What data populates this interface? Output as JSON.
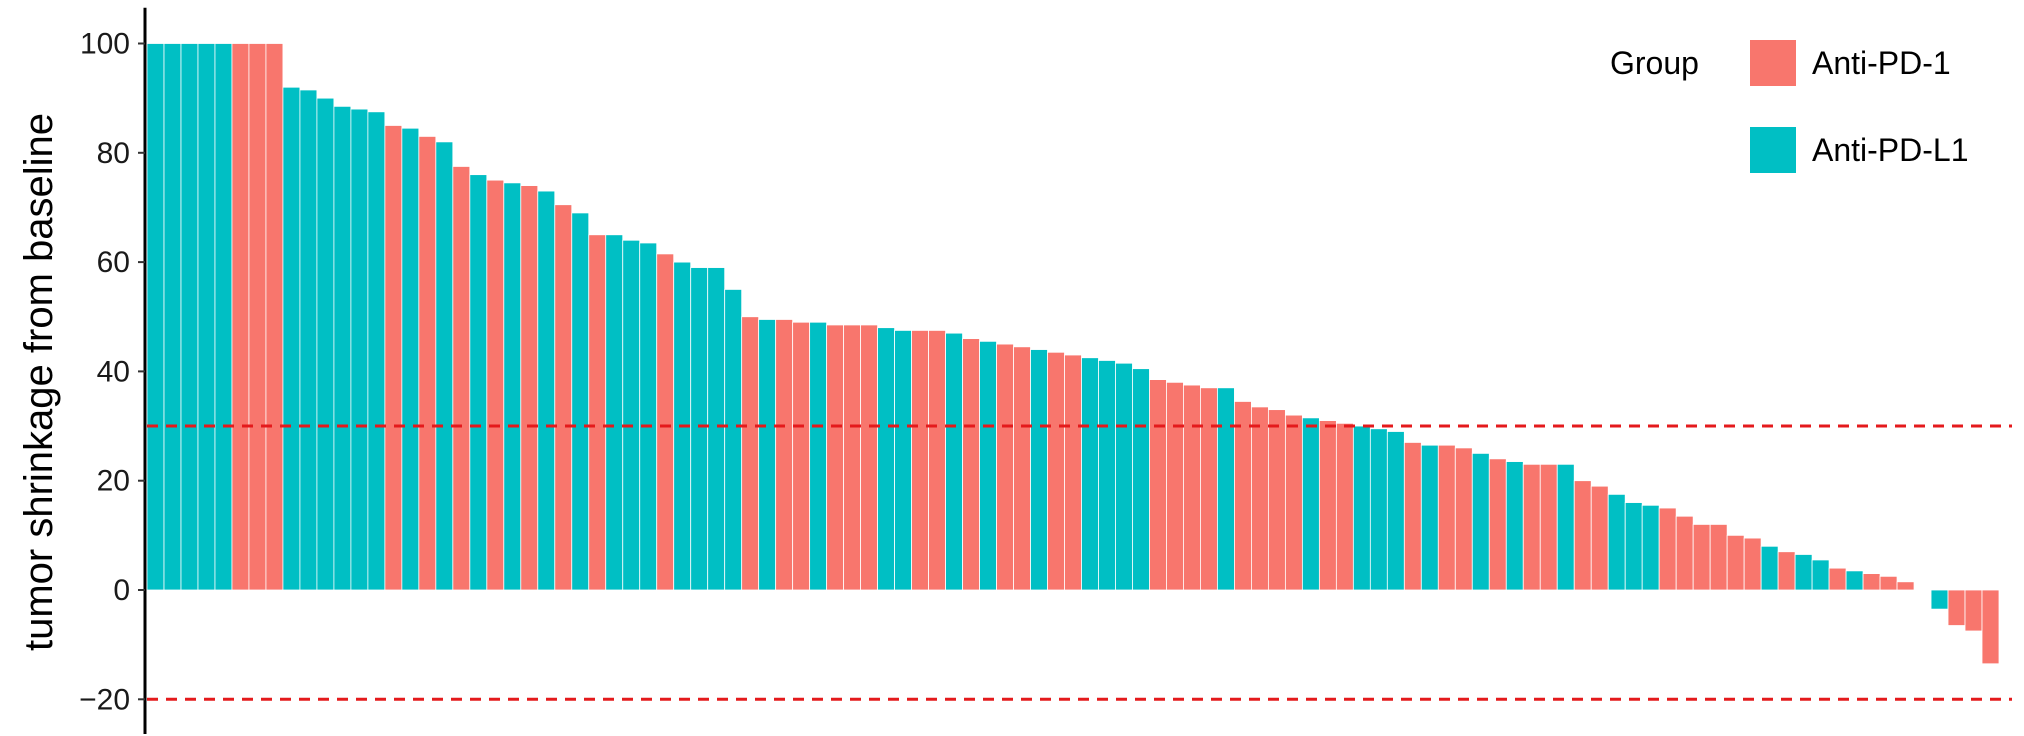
{
  "chart_data": {
    "type": "bar",
    "title": "",
    "xlabel": "",
    "ylabel": "tumor shrinkage from baseline",
    "ylim": [
      -26,
      106
    ],
    "yticks": [
      100,
      80,
      60,
      40,
      20,
      0,
      -20
    ],
    "grid": false,
    "legend": {
      "title": "Group",
      "placement": "top-right",
      "entries": [
        {
          "name": "Anti-PD-1",
          "color": "#F8766D"
        },
        {
          "name": "Anti-PD-L1",
          "color": "#00BFC4"
        }
      ]
    },
    "reference_lines": {
      "values": [
        30,
        -20
      ],
      "color": "#E41A1C",
      "style": "dashed"
    },
    "colors": {
      "Anti-PD-1": "#F8766D",
      "Anti-PD-L1": "#00BFC4"
    },
    "bars": [
      {
        "value": 100,
        "group": "Anti-PD-L1"
      },
      {
        "value": 100,
        "group": "Anti-PD-L1"
      },
      {
        "value": 100,
        "group": "Anti-PD-L1"
      },
      {
        "value": 100,
        "group": "Anti-PD-L1"
      },
      {
        "value": 100,
        "group": "Anti-PD-L1"
      },
      {
        "value": 100,
        "group": "Anti-PD-1"
      },
      {
        "value": 100,
        "group": "Anti-PD-1"
      },
      {
        "value": 100,
        "group": "Anti-PD-1"
      },
      {
        "value": 92,
        "group": "Anti-PD-L1"
      },
      {
        "value": 91.5,
        "group": "Anti-PD-L1"
      },
      {
        "value": 90,
        "group": "Anti-PD-L1"
      },
      {
        "value": 88.5,
        "group": "Anti-PD-L1"
      },
      {
        "value": 88,
        "group": "Anti-PD-L1"
      },
      {
        "value": 87.5,
        "group": "Anti-PD-L1"
      },
      {
        "value": 85,
        "group": "Anti-PD-1"
      },
      {
        "value": 84.5,
        "group": "Anti-PD-L1"
      },
      {
        "value": 83,
        "group": "Anti-PD-1"
      },
      {
        "value": 82,
        "group": "Anti-PD-L1"
      },
      {
        "value": 77.5,
        "group": "Anti-PD-1"
      },
      {
        "value": 76,
        "group": "Anti-PD-L1"
      },
      {
        "value": 75,
        "group": "Anti-PD-1"
      },
      {
        "value": 74.5,
        "group": "Anti-PD-L1"
      },
      {
        "value": 74,
        "group": "Anti-PD-1"
      },
      {
        "value": 73,
        "group": "Anti-PD-L1"
      },
      {
        "value": 70.5,
        "group": "Anti-PD-1"
      },
      {
        "value": 69,
        "group": "Anti-PD-L1"
      },
      {
        "value": 65,
        "group": "Anti-PD-1"
      },
      {
        "value": 65,
        "group": "Anti-PD-L1"
      },
      {
        "value": 64,
        "group": "Anti-PD-L1"
      },
      {
        "value": 63.5,
        "group": "Anti-PD-L1"
      },
      {
        "value": 61.5,
        "group": "Anti-PD-1"
      },
      {
        "value": 60,
        "group": "Anti-PD-L1"
      },
      {
        "value": 59,
        "group": "Anti-PD-L1"
      },
      {
        "value": 59,
        "group": "Anti-PD-L1"
      },
      {
        "value": 55,
        "group": "Anti-PD-L1"
      },
      {
        "value": 50,
        "group": "Anti-PD-1"
      },
      {
        "value": 49.5,
        "group": "Anti-PD-L1"
      },
      {
        "value": 49.5,
        "group": "Anti-PD-1"
      },
      {
        "value": 49,
        "group": "Anti-PD-1"
      },
      {
        "value": 49,
        "group": "Anti-PD-L1"
      },
      {
        "value": 48.5,
        "group": "Anti-PD-1"
      },
      {
        "value": 48.5,
        "group": "Anti-PD-1"
      },
      {
        "value": 48.5,
        "group": "Anti-PD-1"
      },
      {
        "value": 48,
        "group": "Anti-PD-L1"
      },
      {
        "value": 47.5,
        "group": "Anti-PD-L1"
      },
      {
        "value": 47.5,
        "group": "Anti-PD-1"
      },
      {
        "value": 47.5,
        "group": "Anti-PD-1"
      },
      {
        "value": 47,
        "group": "Anti-PD-L1"
      },
      {
        "value": 46,
        "group": "Anti-PD-1"
      },
      {
        "value": 45.5,
        "group": "Anti-PD-L1"
      },
      {
        "value": 45,
        "group": "Anti-PD-1"
      },
      {
        "value": 44.5,
        "group": "Anti-PD-1"
      },
      {
        "value": 44,
        "group": "Anti-PD-L1"
      },
      {
        "value": 43.5,
        "group": "Anti-PD-1"
      },
      {
        "value": 43,
        "group": "Anti-PD-1"
      },
      {
        "value": 42.5,
        "group": "Anti-PD-L1"
      },
      {
        "value": 42,
        "group": "Anti-PD-L1"
      },
      {
        "value": 41.5,
        "group": "Anti-PD-L1"
      },
      {
        "value": 40.5,
        "group": "Anti-PD-L1"
      },
      {
        "value": 38.5,
        "group": "Anti-PD-1"
      },
      {
        "value": 38,
        "group": "Anti-PD-1"
      },
      {
        "value": 37.5,
        "group": "Anti-PD-1"
      },
      {
        "value": 37,
        "group": "Anti-PD-1"
      },
      {
        "value": 37,
        "group": "Anti-PD-L1"
      },
      {
        "value": 34.5,
        "group": "Anti-PD-1"
      },
      {
        "value": 33.5,
        "group": "Anti-PD-1"
      },
      {
        "value": 33,
        "group": "Anti-PD-1"
      },
      {
        "value": 32,
        "group": "Anti-PD-1"
      },
      {
        "value": 31.5,
        "group": "Anti-PD-L1"
      },
      {
        "value": 31,
        "group": "Anti-PD-1"
      },
      {
        "value": 30.5,
        "group": "Anti-PD-1"
      },
      {
        "value": 30,
        "group": "Anti-PD-L1"
      },
      {
        "value": 29.5,
        "group": "Anti-PD-L1"
      },
      {
        "value": 29,
        "group": "Anti-PD-L1"
      },
      {
        "value": 27,
        "group": "Anti-PD-1"
      },
      {
        "value": 26.5,
        "group": "Anti-PD-L1"
      },
      {
        "value": 26.5,
        "group": "Anti-PD-1"
      },
      {
        "value": 26,
        "group": "Anti-PD-1"
      },
      {
        "value": 25,
        "group": "Anti-PD-L1"
      },
      {
        "value": 24,
        "group": "Anti-PD-1"
      },
      {
        "value": 23.5,
        "group": "Anti-PD-L1"
      },
      {
        "value": 23,
        "group": "Anti-PD-1"
      },
      {
        "value": 23,
        "group": "Anti-PD-1"
      },
      {
        "value": 23,
        "group": "Anti-PD-L1"
      },
      {
        "value": 20,
        "group": "Anti-PD-1"
      },
      {
        "value": 19,
        "group": "Anti-PD-1"
      },
      {
        "value": 17.5,
        "group": "Anti-PD-L1"
      },
      {
        "value": 16,
        "group": "Anti-PD-L1"
      },
      {
        "value": 15.5,
        "group": "Anti-PD-L1"
      },
      {
        "value": 15,
        "group": "Anti-PD-1"
      },
      {
        "value": 13.5,
        "group": "Anti-PD-1"
      },
      {
        "value": 12,
        "group": "Anti-PD-1"
      },
      {
        "value": 12,
        "group": "Anti-PD-1"
      },
      {
        "value": 10,
        "group": "Anti-PD-1"
      },
      {
        "value": 9.5,
        "group": "Anti-PD-1"
      },
      {
        "value": 8,
        "group": "Anti-PD-L1"
      },
      {
        "value": 7,
        "group": "Anti-PD-1"
      },
      {
        "value": 6.5,
        "group": "Anti-PD-L1"
      },
      {
        "value": 5.5,
        "group": "Anti-PD-L1"
      },
      {
        "value": 4,
        "group": "Anti-PD-1"
      },
      {
        "value": 3.5,
        "group": "Anti-PD-L1"
      },
      {
        "value": 3,
        "group": "Anti-PD-1"
      },
      {
        "value": 2.5,
        "group": "Anti-PD-1"
      },
      {
        "value": 1.5,
        "group": "Anti-PD-1"
      },
      {
        "value": 0,
        "group": "Anti-PD-1"
      },
      {
        "value": -3.5,
        "group": "Anti-PD-L1"
      },
      {
        "value": -6.5,
        "group": "Anti-PD-1"
      },
      {
        "value": -7.5,
        "group": "Anti-PD-1"
      },
      {
        "value": -13.5,
        "group": "Anti-PD-1"
      }
    ]
  }
}
